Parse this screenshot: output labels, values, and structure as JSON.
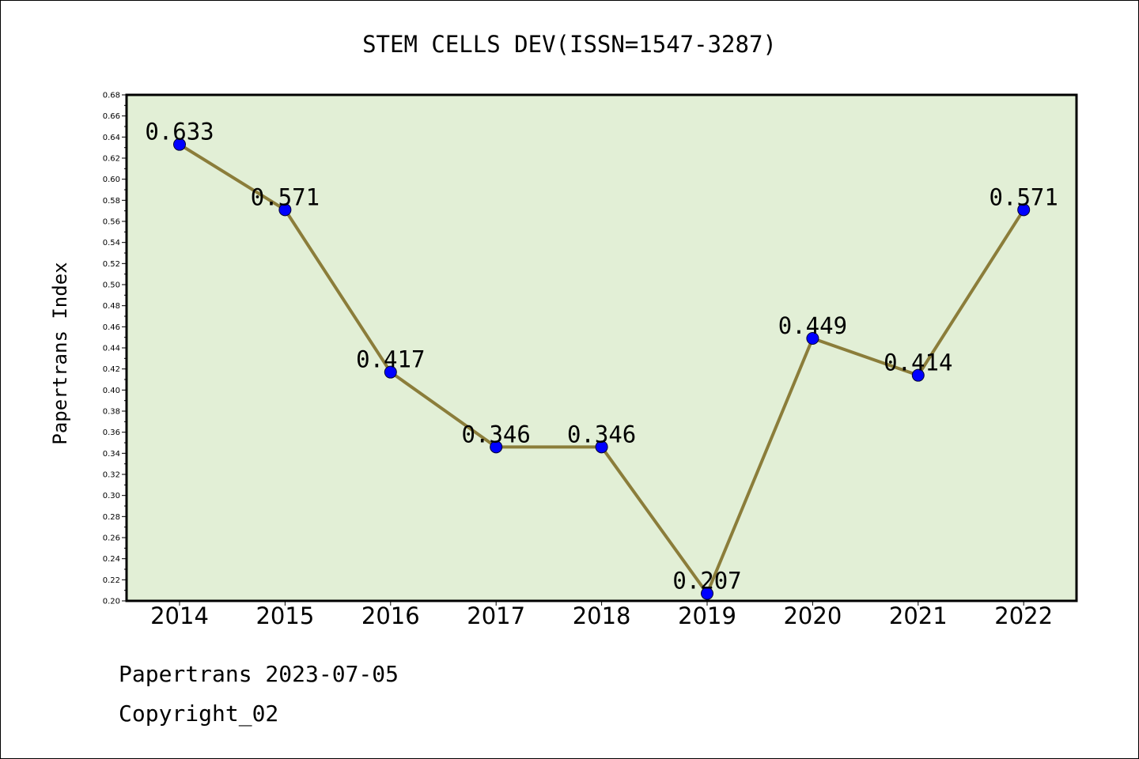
{
  "chart_data": {
    "type": "line",
    "title": "STEM CELLS DEV(ISSN=1547-3287)",
    "xlabel": "",
    "ylabel": "Papertrans Index",
    "categories": [
      "2014",
      "2015",
      "2016",
      "2017",
      "2018",
      "2019",
      "2020",
      "2021",
      "2022"
    ],
    "values": [
      0.633,
      0.571,
      0.417,
      0.346,
      0.346,
      0.207,
      0.449,
      0.414,
      0.571
    ],
    "data_labels": [
      "0.633",
      "0.571",
      "0.417",
      "0.346",
      "0.346",
      "0.207",
      "0.449",
      "0.414",
      "0.571"
    ],
    "ylim": [
      0.2,
      0.68
    ],
    "yticks": [
      "0.20",
      "0.22",
      "0.24",
      "0.26",
      "0.28",
      "0.30",
      "0.32",
      "0.34",
      "0.36",
      "0.38",
      "0.40",
      "0.42",
      "0.44",
      "0.46",
      "0.48",
      "0.50",
      "0.52",
      "0.54",
      "0.56",
      "0.58",
      "0.60",
      "0.62",
      "0.64",
      "0.66",
      "0.68"
    ],
    "grid": false,
    "legend": "none",
    "colors": {
      "plot_background": "#e2efd6",
      "line": "#8b7d3a",
      "marker": "#0000ff"
    }
  },
  "footer": {
    "line1": "Papertrans 2023-07-05",
    "line2": "Copyright_02"
  }
}
